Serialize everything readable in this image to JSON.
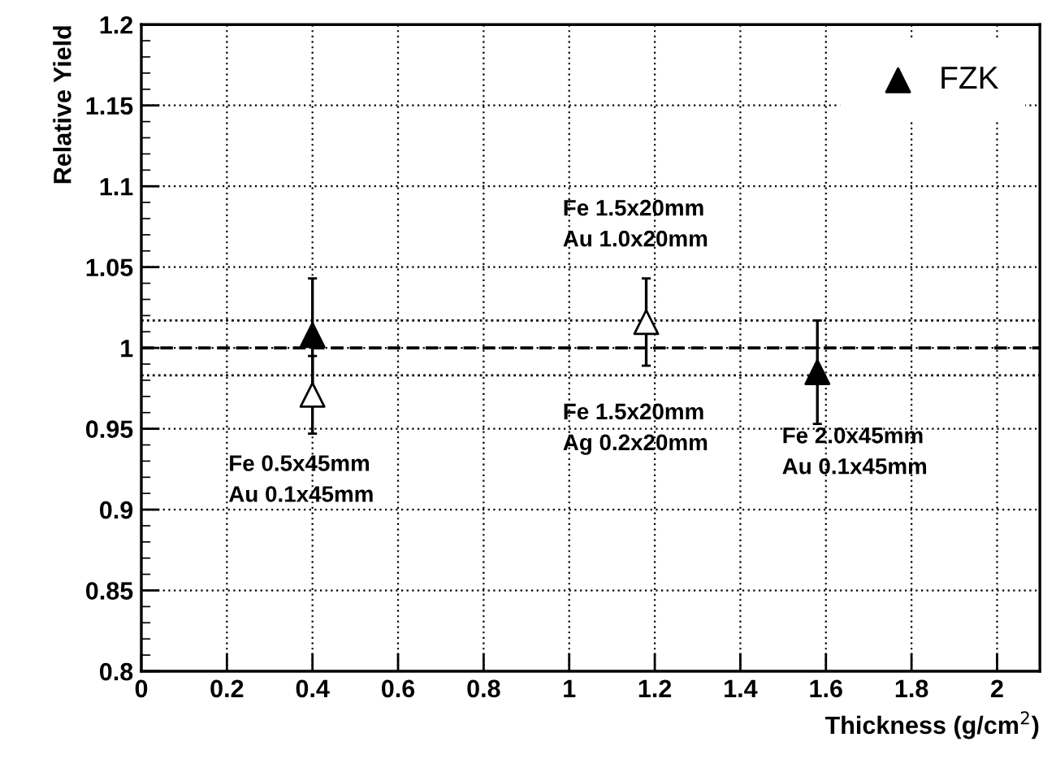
{
  "chart_data": {
    "type": "scatter",
    "xlabel": "Thickness (g/cm$^{2}$)",
    "ylabel": "Relative Yield",
    "xlim": [
      0,
      2.1
    ],
    "ylim": [
      0.8,
      1.2
    ],
    "xticks": [
      0,
      0.2,
      0.4,
      0.6,
      0.8,
      1,
      1.2,
      1.4,
      1.6,
      1.8,
      2
    ],
    "yticks": [
      0.8,
      0.85,
      0.9,
      0.95,
      1,
      1.05,
      1.1,
      1.15,
      1.2
    ],
    "grid": true,
    "legend": "top right",
    "series": [
      {
        "color": "#000000",
        "marker": "triangle_open",
        "x": [
          0.4,
          1.18
        ],
        "values": [
          0.971,
          1.016
        ],
        "errors": [
          0.024,
          0.027
        ]
      },
      {
        "name": "FZK",
        "color": "#000000",
        "marker": "triangle",
        "x": [
          0.4,
          1.58
        ],
        "values": [
          1.008,
          0.985
        ],
        "errors": [
          0.035,
          0.032
        ]
      }
    ],
    "ref_lines": [
      {
        "axis": "y",
        "value": 1,
        "line_style": "dashed"
      },
      {
        "axis": "y",
        "value": 1.017,
        "line_style": "dotted"
      },
      {
        "axis": "y",
        "value": 0.983,
        "line_style": "dotted"
      }
    ],
    "annotations": [
      "Fe 0.5x45mm\nAu 0.1x45mm",
      "Fe 1.5x20mm\nAu 1.0x20mm",
      "Fe 1.5x20mm\nAg 0.2x20mm",
      "Fe 2.0x45mm\nAu 0.1x45mm"
    ]
  }
}
